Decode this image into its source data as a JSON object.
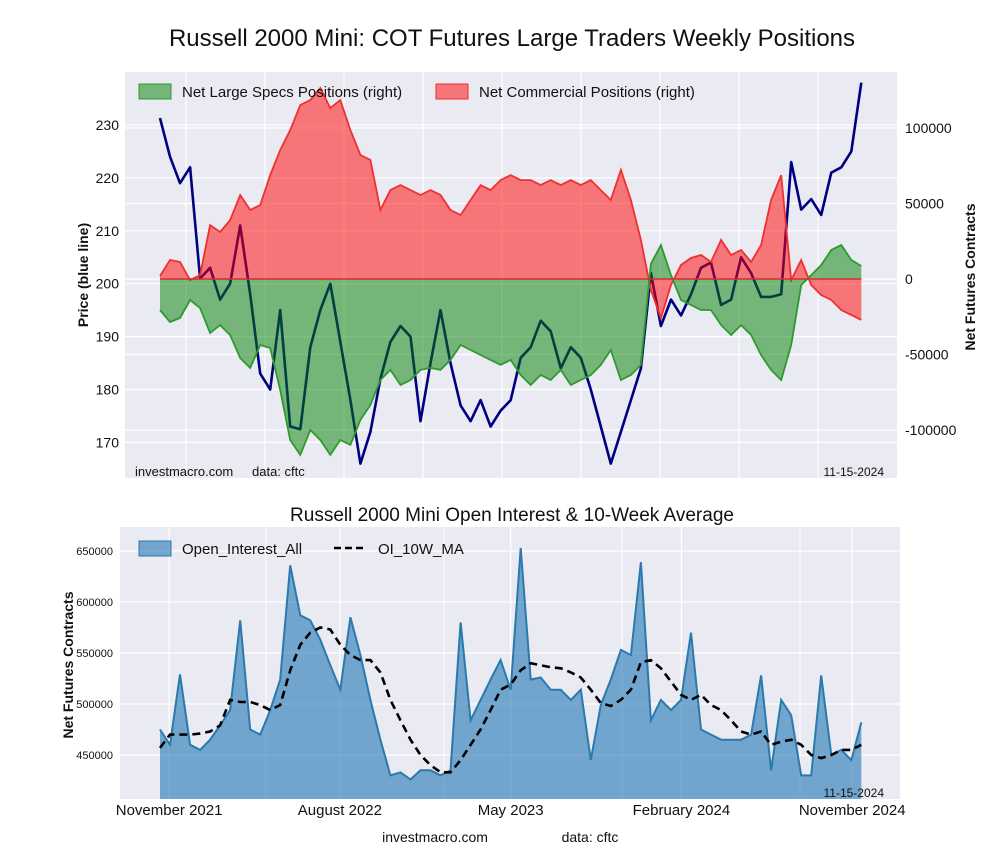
{
  "chart_data": [
    {
      "type": "line",
      "title": "Russell 2000 Mini: COT Futures Large Traders Weekly Positions",
      "ylabel": "Price (blue line)",
      "ylabel_right": "Net Futures Contracts",
      "ylim": [
        164,
        240
      ],
      "ylim_right": [
        -130000,
        140000
      ],
      "yticks": [
        170,
        180,
        190,
        200,
        210,
        220,
        230
      ],
      "yticks_right": [
        -100000,
        -50000,
        0,
        50000,
        100000
      ],
      "grid": true,
      "legend_position": "top-left",
      "x_start_year": 2021.79,
      "x_step_years": 0.044,
      "source_left": "investmacro.com",
      "source_right": "data: cftc",
      "date_stamp": "11-15-2024",
      "colors": {
        "price": "#000080",
        "specs_fill": "rgba(0,128,0,0.5)",
        "specs_line": "#2e9a2e",
        "comm_fill": "rgba(255,0,0,0.5)",
        "comm_line": "#f03030"
      },
      "series": [
        {
          "name": "Price",
          "axis": "left",
          "values": [
            231.3,
            224,
            219,
            222,
            201,
            203,
            197,
            200,
            211,
            198,
            183,
            180,
            195,
            173,
            172.5,
            188,
            195,
            200,
            189,
            178,
            166,
            172,
            182,
            189,
            192,
            190,
            174,
            185,
            195,
            185,
            177,
            174,
            178,
            173,
            176,
            178,
            186,
            188,
            193,
            191,
            184,
            188,
            186,
            180,
            173,
            166,
            172,
            178,
            184,
            202,
            192,
            197,
            194,
            198,
            203,
            204,
            196,
            197,
            205,
            202,
            197.5,
            197.5,
            198,
            223,
            214,
            216,
            213,
            221,
            222,
            225,
            238
          ]
        },
        {
          "name": "Net Large Specs Positions (right)",
          "axis": "right",
          "values": [
            -20500,
            -28500,
            -25800,
            -13900,
            -19200,
            -35700,
            -30500,
            -37100,
            -52300,
            -58900,
            -43700,
            -45700,
            -73500,
            -106600,
            -116500,
            -100000,
            -106600,
            -116500,
            -106600,
            -109900,
            -93300,
            -83400,
            -66900,
            -60200,
            -70200,
            -66900,
            -60200,
            -58900,
            -60200,
            -53600,
            -43700,
            -47000,
            -50300,
            -53600,
            -56900,
            -53600,
            -63600,
            -70200,
            -63600,
            -66900,
            -60200,
            -70200,
            -66900,
            -63600,
            -56900,
            -47000,
            -66900,
            -63600,
            -56900,
            10000,
            22500,
            2600,
            -13900,
            -17200,
            -20500,
            -20500,
            -30500,
            -37100,
            -30500,
            -37100,
            -50300,
            -60200,
            -66900,
            -43700,
            -4000,
            2600,
            9300,
            19200,
            22500,
            12600,
            8600
          ]
        },
        {
          "name": "Net Commercial Positions (right)",
          "axis": "right",
          "values": [
            2000,
            12600,
            11300,
            -700,
            2600,
            35700,
            31100,
            39000,
            55600,
            45700,
            49000,
            68800,
            85400,
            98600,
            115200,
            118500,
            126400,
            113200,
            118500,
            98600,
            82100,
            78800,
            45700,
            58900,
            62200,
            58900,
            55600,
            58900,
            55600,
            45700,
            42400,
            52300,
            62200,
            58900,
            65500,
            68800,
            65500,
            65500,
            62200,
            65500,
            62200,
            65500,
            62200,
            65500,
            58900,
            52300,
            72200,
            52300,
            25800,
            -7300,
            -25800,
            -4000,
            9300,
            13900,
            15900,
            11300,
            25800,
            15900,
            19200,
            11300,
            22500,
            52300,
            68800,
            -700,
            12600,
            -4000,
            -10600,
            -13900,
            -20500,
            -23800,
            -27100
          ]
        }
      ]
    },
    {
      "type": "area",
      "title": "Russell 2000 Mini Open Interest & 10-Week Average",
      "ylabel": "Net Futures Contracts",
      "ylim": [
        407000,
        673500
      ],
      "yticks": [
        450000,
        500000,
        550000,
        600000,
        650000
      ],
      "xticks": [
        {
          "label": "November 2021",
          "year": 2021.83
        },
        {
          "label": "August 2022",
          "year": 2022.58
        },
        {
          "label": "May 2023",
          "year": 2023.33
        },
        {
          "label": "February 2024",
          "year": 2024.08
        },
        {
          "label": "November 2024",
          "year": 2024.83
        }
      ],
      "grid": true,
      "legend_position": "top-left",
      "x_start_year": 2021.79,
      "x_step_years": 0.044,
      "date_stamp": "11-15-2024",
      "colors": {
        "oi_fill": "rgba(31,119,180,0.6)",
        "oi_line": "#2a7aab",
        "ma_line": "#000000"
      },
      "series": [
        {
          "name": "Open_Interest_All",
          "values": [
            475000,
            460000,
            529000,
            460000,
            455000,
            465000,
            479000,
            494000,
            582000,
            475000,
            470000,
            494000,
            524000,
            636000,
            587000,
            582000,
            563000,
            538000,
            514000,
            585000,
            548000,
            504000,
            465000,
            430000,
            433000,
            426000,
            435000,
            435000,
            430000,
            435000,
            580000,
            484000,
            504000,
            524000,
            543000,
            514000,
            653000,
            524000,
            526000,
            514000,
            514000,
            504000,
            514000,
            445000,
            499000,
            524000,
            553000,
            548000,
            639000,
            484000,
            504000,
            494000,
            504000,
            570000,
            475000,
            470000,
            465000,
            465000,
            465000,
            470000,
            528000,
            435000,
            504000,
            489000,
            430000,
            430000,
            528000,
            450000,
            455000,
            445000,
            482000
          ]
        },
        {
          "name": "OI_10W_MA",
          "values": [
            457000,
            470000,
            470000,
            470000,
            471000,
            473000,
            479000,
            504000,
            502000,
            502000,
            499000,
            494000,
            499000,
            533000,
            558000,
            570000,
            575000,
            573000,
            558000,
            548000,
            543000,
            543000,
            531000,
            504000,
            484000,
            465000,
            450000,
            440000,
            433000,
            433000,
            445000,
            460000,
            475000,
            494000,
            514000,
            519000,
            533000,
            540000,
            538000,
            536000,
            535000,
            531000,
            526000,
            514000,
            501000,
            498000,
            504000,
            514000,
            541000,
            543000,
            535000,
            522000,
            509000,
            504000,
            509000,
            499000,
            494000,
            484000,
            473000,
            470000,
            473000,
            460000,
            463000,
            465000,
            460000,
            450000,
            447000,
            450000,
            455000,
            455000,
            460000
          ]
        }
      ]
    }
  ],
  "footer": {
    "site": "investmacro.com",
    "source": "data: cftc"
  }
}
